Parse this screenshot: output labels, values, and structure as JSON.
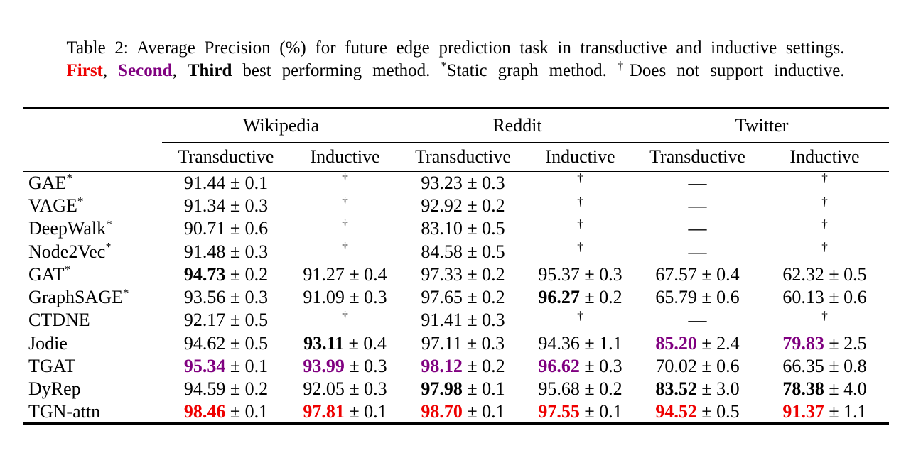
{
  "colors": {
    "first": "#ee0000",
    "second": "#800080",
    "text": "#000000"
  },
  "symbols": {
    "pm": "±",
    "dagger": "†",
    "dash": "—",
    "star": "*"
  },
  "caption": {
    "line1": "Table 2: Average Precision (%) for future edge prediction task in transductive and inductive settings.",
    "line2": {
      "first": "First",
      "sep1": ", ",
      "second": "Second",
      "sep2": ", ",
      "third": "Third",
      "rest1": " best performing method. ",
      "star": "*",
      "rest2": "Static graph method. ",
      "dagger": "†",
      "rest3": "Does not support inductive."
    }
  },
  "table": {
    "groups": [
      "Wikipedia",
      "Reddit",
      "Twitter"
    ],
    "subheaders": [
      "Transductive",
      "Inductive",
      "Transductive",
      "Inductive",
      "Transductive",
      "Inductive"
    ],
    "rows": [
      {
        "label": "GAE",
        "star": true,
        "bold": false,
        "cells": [
          {
            "v": "91.44",
            "pm": "0.1",
            "s": "n"
          },
          {
            "t": "dagger"
          },
          {
            "v": "93.23",
            "pm": "0.3",
            "s": "n"
          },
          {
            "t": "dagger"
          },
          {
            "t": "dash"
          },
          {
            "t": "dagger"
          }
        ]
      },
      {
        "label": "VAGE",
        "star": true,
        "bold": false,
        "cells": [
          {
            "v": "91.34",
            "pm": "0.3",
            "s": "n"
          },
          {
            "t": "dagger"
          },
          {
            "v": "92.92",
            "pm": "0.2",
            "s": "n"
          },
          {
            "t": "dagger"
          },
          {
            "t": "dash"
          },
          {
            "t": "dagger"
          }
        ]
      },
      {
        "label": "DeepWalk",
        "star": true,
        "bold": false,
        "cells": [
          {
            "v": "90.71",
            "pm": "0.6",
            "s": "n"
          },
          {
            "t": "dagger"
          },
          {
            "v": "83.10",
            "pm": "0.5",
            "s": "n"
          },
          {
            "t": "dagger"
          },
          {
            "t": "dash"
          },
          {
            "t": "dagger"
          }
        ]
      },
      {
        "label": "Node2Vec",
        "star": true,
        "bold": false,
        "cells": [
          {
            "v": "91.48",
            "pm": "0.3",
            "s": "n"
          },
          {
            "t": "dagger"
          },
          {
            "v": "84.58",
            "pm": "0.5",
            "s": "n"
          },
          {
            "t": "dagger"
          },
          {
            "t": "dash"
          },
          {
            "t": "dagger"
          }
        ]
      },
      {
        "label": "GAT",
        "star": true,
        "bold": false,
        "cells": [
          {
            "v": "94.73",
            "pm": "0.2",
            "s": "b"
          },
          {
            "v": "91.27",
            "pm": "0.4",
            "s": "n"
          },
          {
            "v": "97.33",
            "pm": "0.2",
            "s": "n"
          },
          {
            "v": "95.37",
            "pm": "0.3",
            "s": "n"
          },
          {
            "v": "67.57",
            "pm": "0.4",
            "s": "n"
          },
          {
            "v": "62.32",
            "pm": "0.5",
            "s": "n"
          }
        ]
      },
      {
        "label": "GraphSAGE",
        "star": true,
        "bold": false,
        "cells": [
          {
            "v": "93.56",
            "pm": "0.3",
            "s": "n"
          },
          {
            "v": "91.09",
            "pm": "0.3",
            "s": "n"
          },
          {
            "v": "97.65",
            "pm": "0.2",
            "s": "n"
          },
          {
            "v": "96.27",
            "pm": "0.2",
            "s": "b"
          },
          {
            "v": "65.79",
            "pm": "0.6",
            "s": "n"
          },
          {
            "v": "60.13",
            "pm": "0.6",
            "s": "n"
          }
        ]
      },
      {
        "label": "CTDNE",
        "star": false,
        "bold": false,
        "cells": [
          {
            "v": "92.17",
            "pm": "0.5",
            "s": "n"
          },
          {
            "t": "dagger"
          },
          {
            "v": "91.41",
            "pm": "0.3",
            "s": "n"
          },
          {
            "t": "dagger"
          },
          {
            "t": "dash"
          },
          {
            "t": "dagger"
          }
        ]
      },
      {
        "label": "Jodie",
        "star": false,
        "bold": false,
        "cells": [
          {
            "v": "94.62",
            "pm": "0.5",
            "s": "n"
          },
          {
            "v": "93.11",
            "pm": "0.4",
            "s": "b"
          },
          {
            "v": "97.11",
            "pm": "0.3",
            "s": "n"
          },
          {
            "v": "94.36",
            "pm": "1.1",
            "s": "n"
          },
          {
            "v": "85.20",
            "pm": "2.4",
            "s": "p"
          },
          {
            "v": "79.83",
            "pm": "2.5",
            "s": "p"
          }
        ]
      },
      {
        "label": "TGAT",
        "star": false,
        "bold": false,
        "cells": [
          {
            "v": "95.34",
            "pm": "0.1",
            "s": "p"
          },
          {
            "v": "93.99",
            "pm": "0.3",
            "s": "p"
          },
          {
            "v": "98.12",
            "pm": "0.2",
            "s": "p"
          },
          {
            "v": "96.62",
            "pm": "0.3",
            "s": "p"
          },
          {
            "v": "70.02",
            "pm": "0.6",
            "s": "n"
          },
          {
            "v": "66.35",
            "pm": "0.8",
            "s": "n"
          }
        ]
      },
      {
        "label": "DyRep",
        "star": false,
        "bold": false,
        "cells": [
          {
            "v": "94.59",
            "pm": "0.2",
            "s": "n"
          },
          {
            "v": "92.05",
            "pm": "0.3",
            "s": "n"
          },
          {
            "v": "97.98",
            "pm": "0.1",
            "s": "b"
          },
          {
            "v": "95.68",
            "pm": "0.2",
            "s": "n"
          },
          {
            "v": "83.52",
            "pm": "3.0",
            "s": "b"
          },
          {
            "v": "78.38",
            "pm": "4.0",
            "s": "b"
          }
        ]
      },
      {
        "label": "TGN-attn",
        "star": false,
        "bold": true,
        "cells": [
          {
            "v": "98.46",
            "pm": "0.1",
            "s": "r"
          },
          {
            "v": "97.81",
            "pm": "0.1",
            "s": "r"
          },
          {
            "v": "98.70",
            "pm": "0.1",
            "s": "r"
          },
          {
            "v": "97.55",
            "pm": "0.1",
            "s": "r"
          },
          {
            "v": "94.52",
            "pm": "0.5",
            "s": "r"
          },
          {
            "v": "91.37",
            "pm": "1.1",
            "s": "r"
          }
        ]
      }
    ]
  }
}
